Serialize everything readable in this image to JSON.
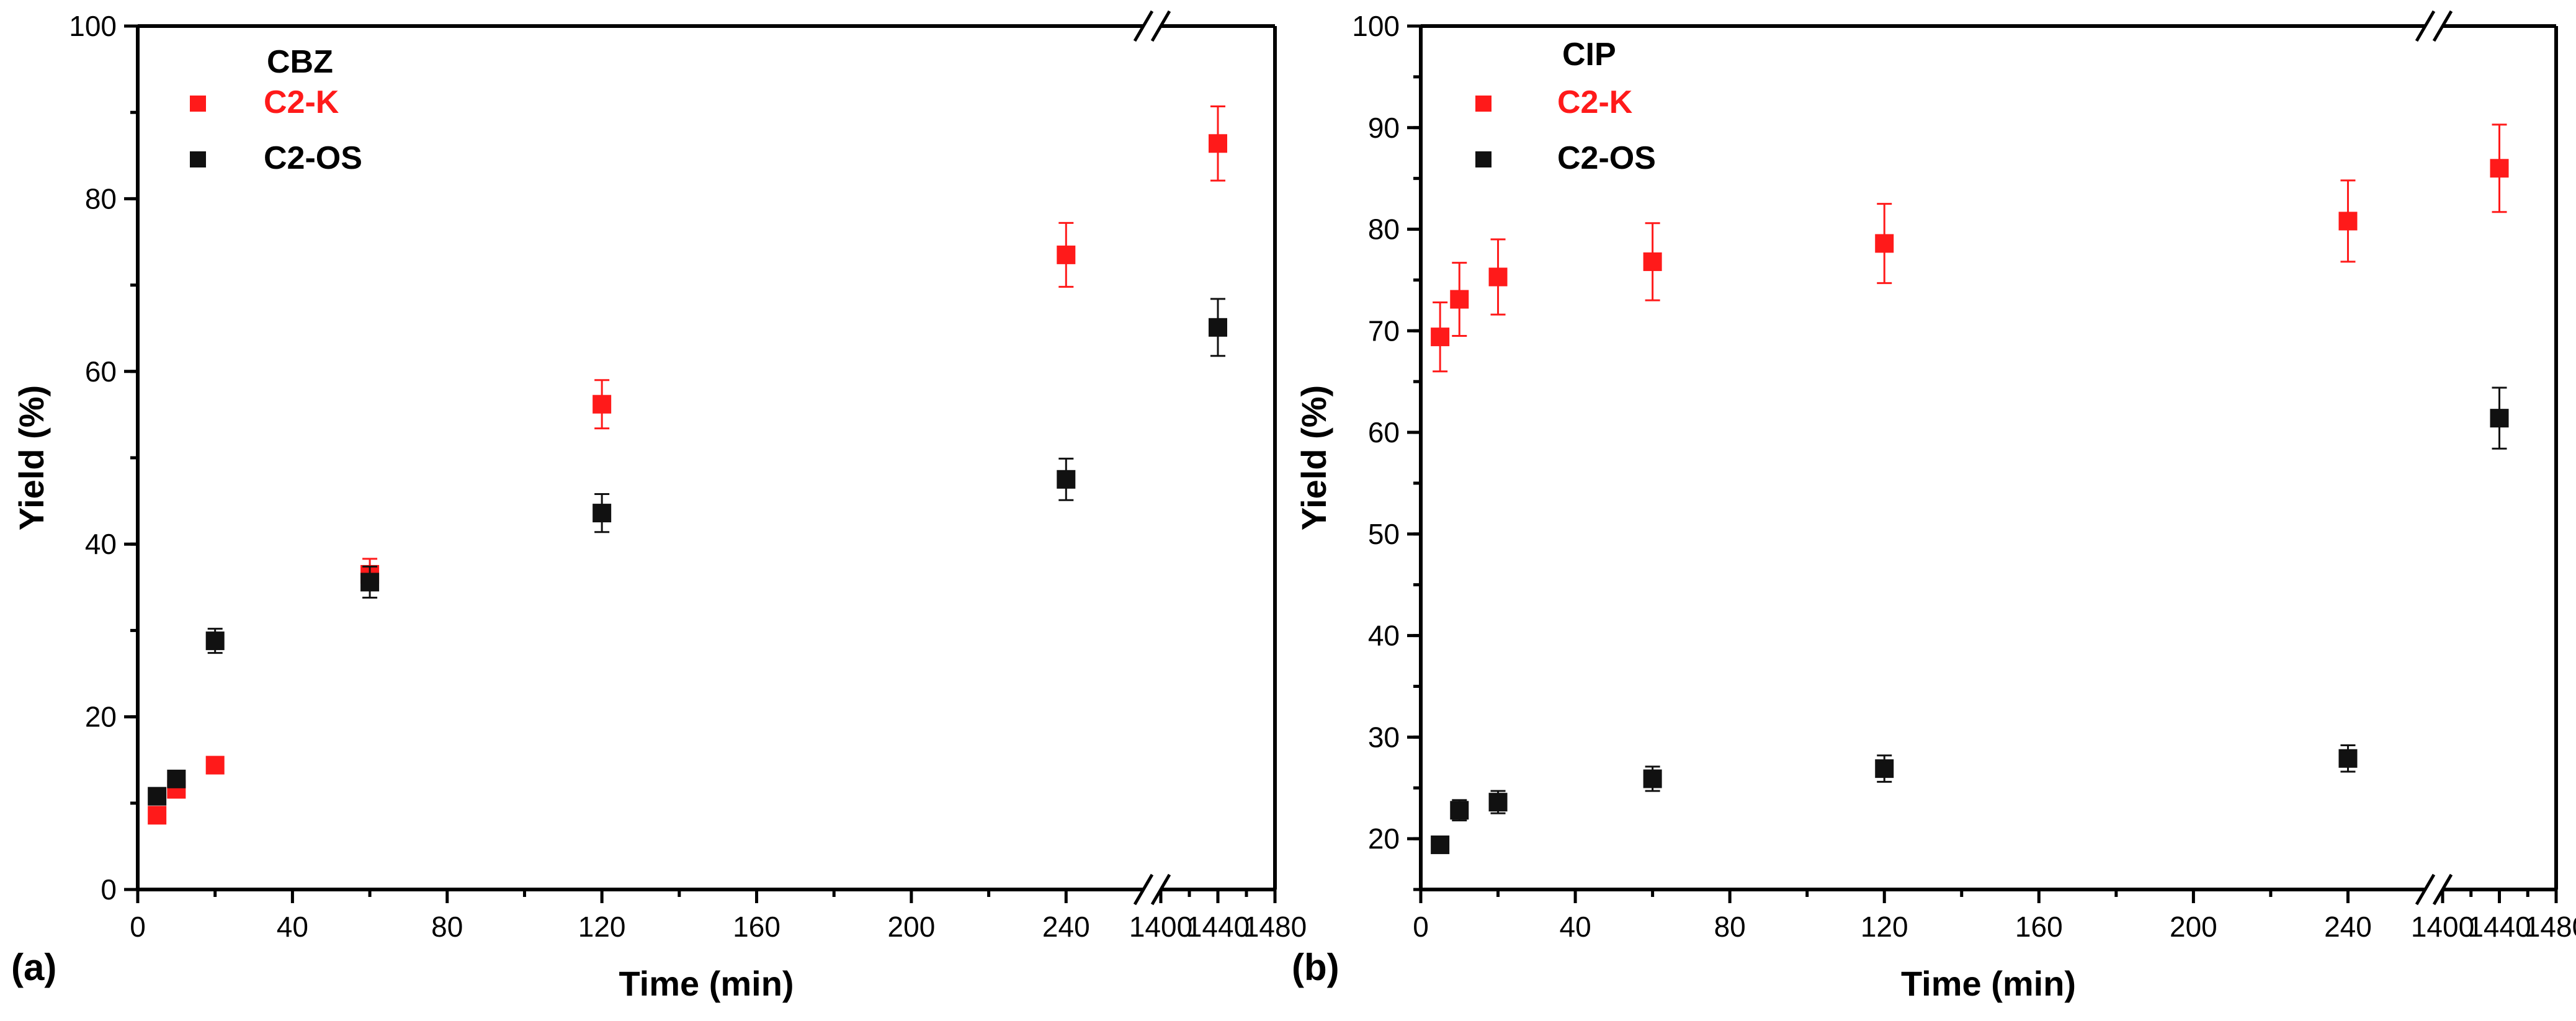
{
  "chart_data": [
    {
      "panel": "(a)",
      "type": "scatter",
      "title": "CBZ",
      "xlabel": "Time (min)",
      "ylabel": "Yield (%)",
      "x_ticks": [
        "0",
        "40",
        "80",
        "120",
        "160",
        "200",
        "240",
        "1400",
        "1440",
        "1480"
      ],
      "x_break": "//",
      "y_ticks": [
        "0",
        "20",
        "40",
        "60",
        "80",
        "100"
      ],
      "ylim": [
        0,
        100
      ],
      "x_segments": [
        [
          0,
          260
        ],
        [
          1400,
          1480
        ]
      ],
      "legend_position": "top-left",
      "series": [
        {
          "name": "C2-K",
          "color": "#ff1a1a",
          "points": [
            {
              "x": 5,
              "y": 8.6,
              "err": 0.4
            },
            {
              "x": 10,
              "y": 11.6,
              "err": 0.4
            },
            {
              "x": 20,
              "y": 14.4,
              "err": 0.4
            },
            {
              "x": 60,
              "y": 36.5,
              "err": 1.8
            },
            {
              "x": 120,
              "y": 56.2,
              "err": 2.8
            },
            {
              "x": 240,
              "y": 73.5,
              "err": 3.7
            },
            {
              "x": 1440,
              "y": 86.4,
              "err": 4.3
            }
          ]
        },
        {
          "name": "C2-OS",
          "color": "#111111",
          "points": [
            {
              "x": 5,
              "y": 10.8,
              "err": 0.4
            },
            {
              "x": 10,
              "y": 12.8,
              "err": 0.6
            },
            {
              "x": 20,
              "y": 28.8,
              "err": 1.4
            },
            {
              "x": 60,
              "y": 35.6,
              "err": 1.8
            },
            {
              "x": 120,
              "y": 43.6,
              "err": 2.2
            },
            {
              "x": 240,
              "y": 47.5,
              "err": 2.4
            },
            {
              "x": 1440,
              "y": 65.1,
              "err": 3.3
            }
          ]
        }
      ]
    },
    {
      "panel": "(b)",
      "type": "scatter",
      "title": "CIP",
      "xlabel": "Time (min)",
      "ylabel": "Yield (%)",
      "x_ticks": [
        "0",
        "40",
        "80",
        "120",
        "160",
        "200",
        "240",
        "1400",
        "1440",
        "1480"
      ],
      "x_break": "//",
      "y_ticks": [
        "20",
        "30",
        "40",
        "50",
        "60",
        "70",
        "80",
        "90",
        "100"
      ],
      "ylim": [
        15,
        100
      ],
      "x_segments": [
        [
          0,
          260
        ],
        [
          1400,
          1480
        ]
      ],
      "legend_position": "top-left",
      "series": [
        {
          "name": "C2-K",
          "color": "#ff1a1a",
          "points": [
            {
              "x": 5,
              "y": 69.4,
              "err": 3.4
            },
            {
              "x": 10,
              "y": 73.1,
              "err": 3.6
            },
            {
              "x": 20,
              "y": 75.3,
              "err": 3.7
            },
            {
              "x": 60,
              "y": 76.8,
              "err": 3.8
            },
            {
              "x": 120,
              "y": 78.6,
              "err": 3.9
            },
            {
              "x": 240,
              "y": 80.8,
              "err": 4.0
            },
            {
              "x": 1440,
              "y": 86.0,
              "err": 4.3
            }
          ]
        },
        {
          "name": "C2-OS",
          "color": "#111111",
          "points": [
            {
              "x": 5,
              "y": 19.4,
              "err": 0.6
            },
            {
              "x": 10,
              "y": 22.8,
              "err": 1.0
            },
            {
              "x": 20,
              "y": 23.6,
              "err": 1.1
            },
            {
              "x": 60,
              "y": 25.9,
              "err": 1.2
            },
            {
              "x": 120,
              "y": 26.9,
              "err": 1.3
            },
            {
              "x": 240,
              "y": 27.9,
              "err": 1.3
            },
            {
              "x": 1440,
              "y": 61.4,
              "err": 3.0
            }
          ]
        }
      ]
    }
  ]
}
